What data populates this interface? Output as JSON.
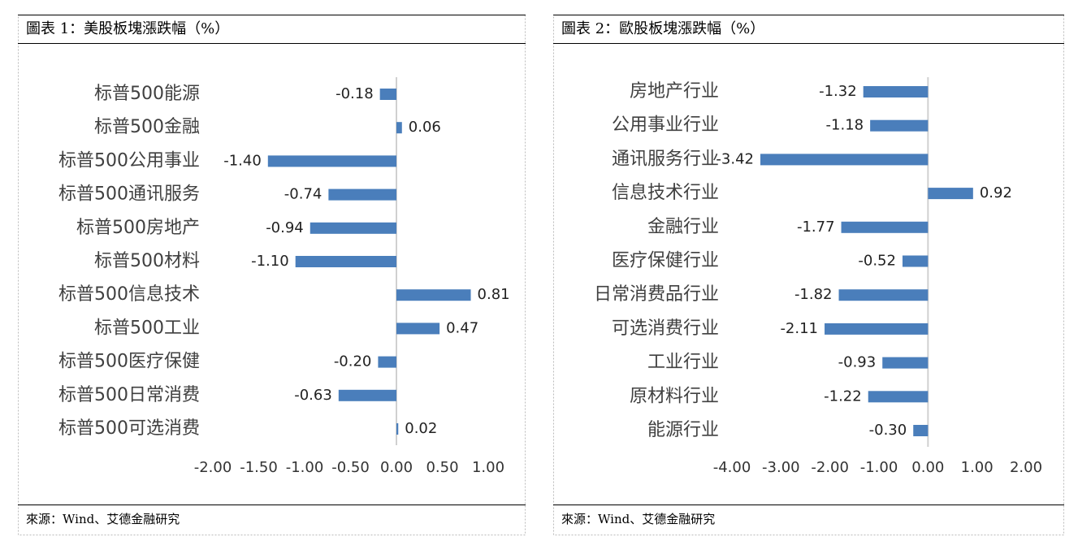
{
  "chart_data": [
    {
      "type": "bar",
      "orientation": "horizontal",
      "title": "圖表 1：美股板塊漲跌幅（%）",
      "source": "來源：Wind、艾德金融研究",
      "categories": [
        "标普500能源",
        "标普500金融",
        "标普500公用事业",
        "标普500通讯服务",
        "标普500房地产",
        "标普500材料",
        "标普500信息技术",
        "标普500工业",
        "标普500医疗保健",
        "标普500日常消费",
        "标普500可选消费"
      ],
      "values": [
        -0.18,
        0.06,
        -1.4,
        -0.74,
        -0.94,
        -1.1,
        0.81,
        0.47,
        -0.2,
        -0.63,
        0.02
      ],
      "value_labels": [
        "-0.18",
        "0.06",
        "-1.40",
        "-0.74",
        "-0.94",
        "-1.10",
        "0.81",
        "0.47",
        "-0.20",
        "-0.63",
        "0.02"
      ],
      "color": "#4a7ebb",
      "xlim": [
        -2,
        1
      ],
      "xticks": [
        {
          "value": -2,
          "label": "-2.00"
        },
        {
          "value": -1.5,
          "label": "-1.50"
        },
        {
          "value": -1,
          "label": "-1.00"
        },
        {
          "value": -0.5,
          "label": "-0.50"
        },
        {
          "value": 0,
          "label": "0.00"
        },
        {
          "value": 0.5,
          "label": "0.50"
        },
        {
          "value": 1,
          "label": "1.00"
        }
      ]
    },
    {
      "type": "bar",
      "orientation": "horizontal",
      "title": "圖表 2：歐股板塊漲跌幅（%）",
      "source": "來源：Wind、艾德金融研究",
      "categories": [
        "房地产行业",
        "公用事业行业",
        "通讯服务行业",
        "信息技术行业",
        "金融行业",
        "医疗保健行业",
        "日常消费品行业",
        "可选消费行业",
        "工业行业",
        "原材料行业",
        "能源行业"
      ],
      "values": [
        -1.32,
        -1.18,
        -3.42,
        0.92,
        -1.77,
        -0.52,
        -1.82,
        -2.11,
        -0.93,
        -1.22,
        -0.3
      ],
      "value_labels": [
        "-1.32",
        "-1.18",
        "-3.42",
        "0.92",
        "-1.77",
        "-0.52",
        "-1.82",
        "-2.11",
        "-0.93",
        "-1.22",
        "-0.30"
      ],
      "color": "#4a7ebb",
      "xlim": [
        -4,
        2
      ],
      "xticks": [
        {
          "value": -4,
          "label": "-4.00"
        },
        {
          "value": -3,
          "label": "-3.00"
        },
        {
          "value": -2,
          "label": "-2.00"
        },
        {
          "value": -1,
          "label": "-1.00"
        },
        {
          "value": 0,
          "label": "0.00"
        },
        {
          "value": 1,
          "label": "1.00"
        },
        {
          "value": 2,
          "label": "2.00"
        }
      ]
    }
  ]
}
